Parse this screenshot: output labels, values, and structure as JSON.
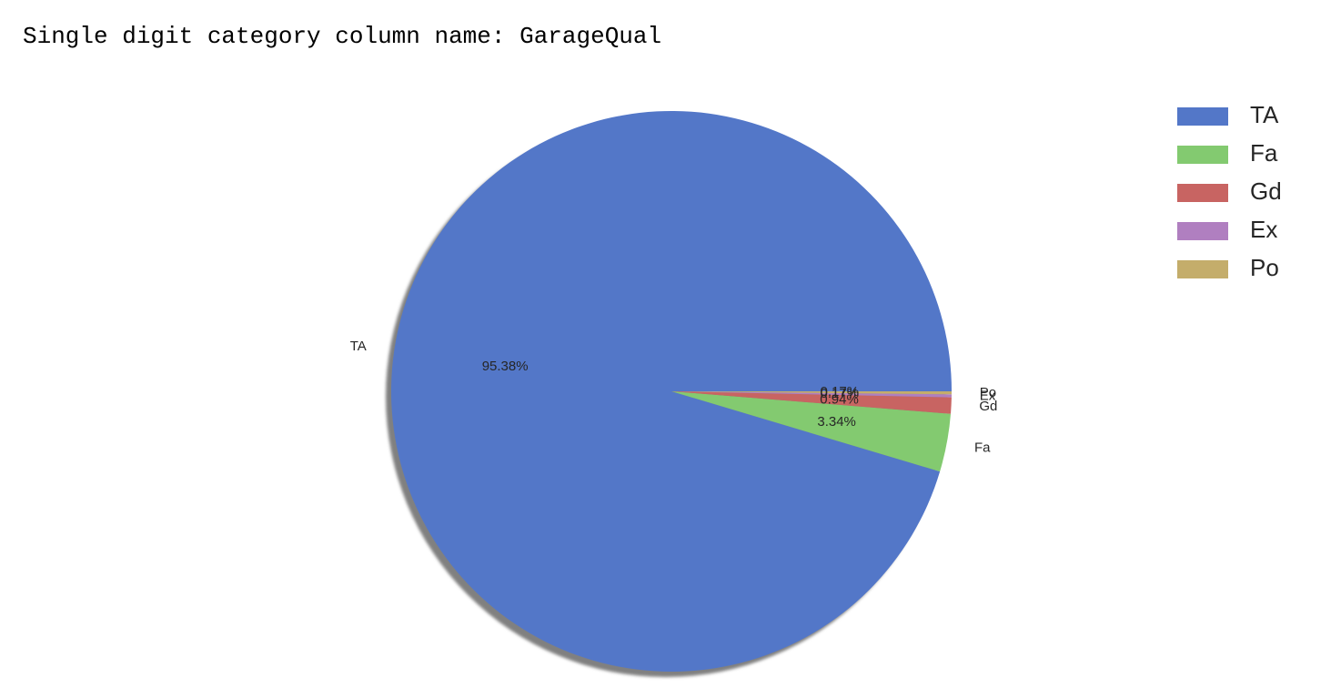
{
  "output": {
    "text": "Single digit category column name: GarageQual"
  },
  "chart_data": {
    "type": "pie",
    "labels": [
      "TA",
      "Fa",
      "Gd",
      "Ex",
      "Po"
    ],
    "values": [
      95.38,
      3.34,
      0.94,
      0.17,
      0.17
    ],
    "value_labels": [
      "95.38%",
      "3.34%",
      "0.94%",
      "0.17%",
      "0.17%"
    ],
    "colors": [
      "#5377C8",
      "#83CA70",
      "#C86462",
      "#B07FC0",
      "#C4AD6B"
    ],
    "shadow": true,
    "legend": {
      "placement": "top-right",
      "entries": [
        "TA",
        "Fa",
        "Gd",
        "Ex",
        "Po"
      ]
    }
  }
}
